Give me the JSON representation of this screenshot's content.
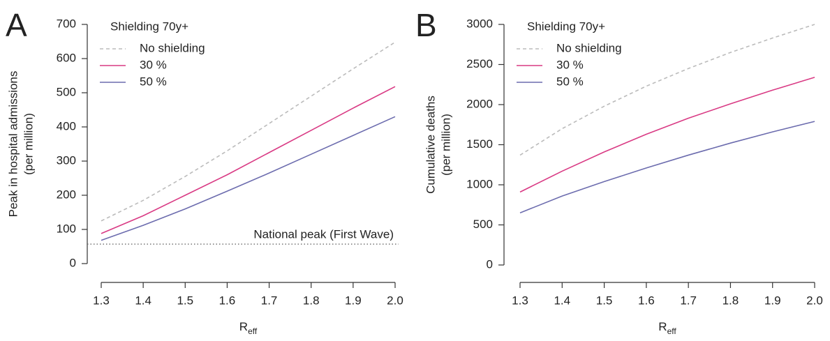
{
  "chart_data": [
    {
      "type": "line",
      "panel": "A",
      "ylabel": [
        "Peak in hospital admissions",
        "(per million)"
      ],
      "xlabel": {
        "main": "R",
        "sub": "eff"
      },
      "legend_title": "Shielding 70y+",
      "x": [
        1.3,
        1.4,
        1.5,
        1.6,
        1.7,
        1.8,
        1.9,
        2.0
      ],
      "series": [
        {
          "name": "No shielding",
          "color": "#bbbbbb",
          "dashed": true,
          "values": [
            125,
            185,
            255,
            330,
            410,
            490,
            570,
            648
          ]
        },
        {
          "name": "30 %",
          "color": "#d93a84",
          "dashed": false,
          "values": [
            88,
            140,
            200,
            260,
            325,
            390,
            455,
            518
          ]
        },
        {
          "name": "50 %",
          "color": "#6c6cae",
          "dashed": false,
          "values": [
            68,
            112,
            160,
            212,
            265,
            320,
            375,
            430
          ]
        }
      ],
      "reference_line": {
        "value": 57,
        "label": "National peak (First Wave)"
      },
      "xlim": [
        1.3,
        2.0
      ],
      "xticks": [
        1.3,
        1.4,
        1.5,
        1.6,
        1.7,
        1.8,
        1.9,
        {
          "value": 2.0,
          "label": "2.0"
        }
      ],
      "ylim": [
        0,
        700
      ],
      "yticks": [
        0,
        100,
        200,
        300,
        400,
        500,
        600,
        700
      ]
    },
    {
      "type": "line",
      "panel": "B",
      "ylabel": [
        "Cumulative deaths",
        "(per million)"
      ],
      "xlabel": {
        "main": "R",
        "sub": "eff"
      },
      "legend_title": "Shielding 70y+",
      "x": [
        1.3,
        1.4,
        1.5,
        1.6,
        1.7,
        1.8,
        1.9,
        2.0
      ],
      "series": [
        {
          "name": "No shielding",
          "color": "#bbbbbb",
          "dashed": true,
          "values": [
            1370,
            1700,
            1980,
            2230,
            2450,
            2650,
            2830,
            3000
          ]
        },
        {
          "name": "30 %",
          "color": "#d93a84",
          "dashed": false,
          "values": [
            910,
            1170,
            1410,
            1630,
            1830,
            2010,
            2180,
            2340
          ]
        },
        {
          "name": "50 %",
          "color": "#6c6cae",
          "dashed": false,
          "values": [
            650,
            860,
            1040,
            1210,
            1370,
            1520,
            1660,
            1790
          ]
        }
      ],
      "xlim": [
        1.3,
        2.0
      ],
      "xticks": [
        1.3,
        1.4,
        1.5,
        1.6,
        1.7,
        1.8,
        1.9,
        {
          "value": 2.0,
          "label": "2.0"
        }
      ],
      "ylim": [
        0,
        3000
      ],
      "yticks": [
        0,
        500,
        1000,
        1500,
        2000,
        2500,
        3000
      ]
    }
  ]
}
